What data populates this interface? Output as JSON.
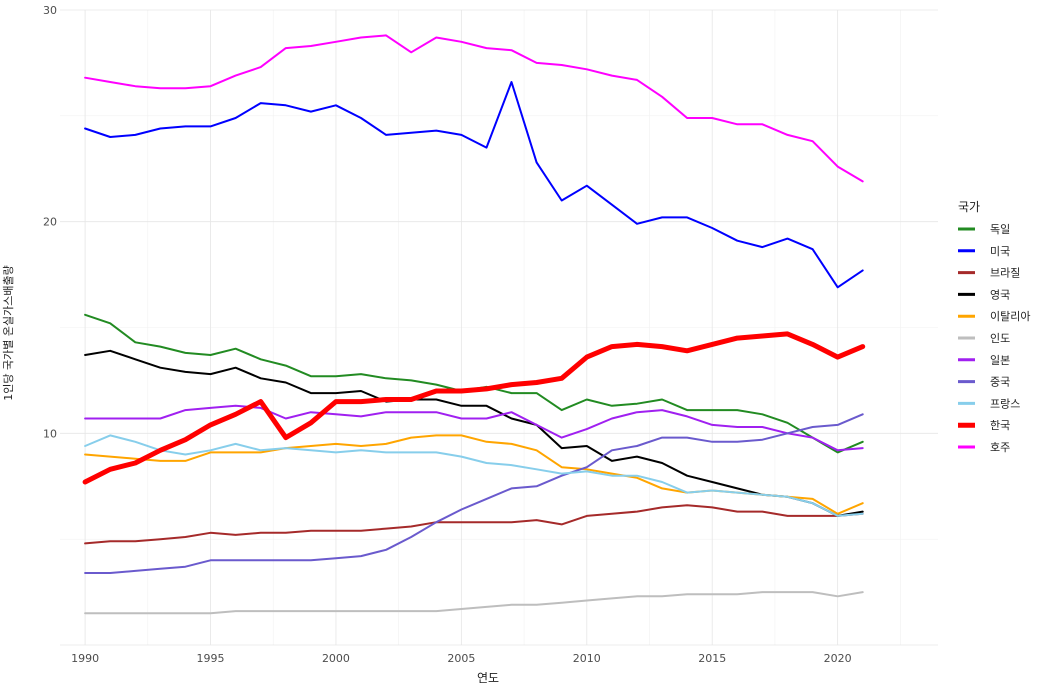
{
  "chart_data": {
    "type": "line",
    "title": "",
    "xlabel": "연도",
    "ylabel": "1인당 국가별 온실가스배출량",
    "xlim": [
      1989,
      2024
    ],
    "ylim": [
      0,
      30
    ],
    "x_ticks": [
      1990,
      1995,
      2000,
      2005,
      2010,
      2015,
      2020
    ],
    "y_ticks": [
      10,
      20,
      30
    ],
    "grid": true,
    "legend_title": "국가",
    "legend_position": "right",
    "x": [
      1990,
      1991,
      1992,
      1993,
      1994,
      1995,
      1996,
      1997,
      1998,
      1999,
      2000,
      2001,
      2002,
      2003,
      2004,
      2005,
      2006,
      2007,
      2008,
      2009,
      2010,
      2011,
      2012,
      2013,
      2014,
      2015,
      2016,
      2017,
      2018,
      2019,
      2020,
      2021
    ],
    "series": [
      {
        "name": "독일",
        "color": "#228B22",
        "width": 2,
        "values": [
          15.6,
          15.2,
          14.3,
          14.1,
          13.8,
          13.7,
          14.0,
          13.5,
          13.2,
          12.7,
          12.7,
          12.8,
          12.6,
          12.5,
          12.3,
          12.0,
          12.2,
          11.9,
          11.9,
          11.1,
          11.6,
          11.3,
          11.4,
          11.6,
          11.1,
          11.1,
          11.1,
          10.9,
          10.5,
          9.8,
          9.1,
          9.6
        ]
      },
      {
        "name": "미국",
        "color": "#0000FF",
        "width": 2,
        "values": [
          24.4,
          24.0,
          24.1,
          24.4,
          24.5,
          24.5,
          24.9,
          25.6,
          25.5,
          25.2,
          25.5,
          24.9,
          24.1,
          24.2,
          24.3,
          24.1,
          23.5,
          26.6,
          22.8,
          21.0,
          21.7,
          20.8,
          19.9,
          20.2,
          20.2,
          19.7,
          19.1,
          18.8,
          19.2,
          18.7,
          16.9,
          17.7
        ]
      },
      {
        "name": "브라질",
        "color": "#A52A2A",
        "width": 2,
        "values": [
          4.8,
          4.9,
          4.9,
          5.0,
          5.1,
          5.3,
          5.2,
          5.3,
          5.3,
          5.4,
          5.4,
          5.4,
          5.5,
          5.6,
          5.8,
          5.8,
          5.8,
          5.8,
          5.9,
          5.7,
          6.1,
          6.2,
          6.3,
          6.5,
          6.6,
          6.5,
          6.3,
          6.3,
          6.1,
          6.1,
          6.1,
          6.2
        ]
      },
      {
        "name": "영국",
        "color": "#000000",
        "width": 2,
        "values": [
          13.7,
          13.9,
          13.5,
          13.1,
          12.9,
          12.8,
          13.1,
          12.6,
          12.4,
          11.9,
          11.9,
          12.0,
          11.5,
          11.6,
          11.6,
          11.3,
          11.3,
          10.7,
          10.4,
          9.3,
          9.4,
          8.7,
          8.9,
          8.6,
          8.0,
          7.7,
          7.4,
          7.1,
          7.0,
          6.7,
          6.1,
          6.3
        ]
      },
      {
        "name": "이탈리아",
        "color": "#FFA500",
        "width": 2,
        "values": [
          9.0,
          8.9,
          8.8,
          8.7,
          8.7,
          9.1,
          9.1,
          9.1,
          9.3,
          9.4,
          9.5,
          9.4,
          9.5,
          9.8,
          9.9,
          9.9,
          9.6,
          9.5,
          9.2,
          8.4,
          8.3,
          8.1,
          7.9,
          7.4,
          7.2,
          7.3,
          7.2,
          7.1,
          7.0,
          6.9,
          6.2,
          6.7
        ]
      },
      {
        "name": "인도",
        "color": "#BEBEBE",
        "width": 2,
        "values": [
          1.5,
          1.5,
          1.5,
          1.5,
          1.5,
          1.5,
          1.6,
          1.6,
          1.6,
          1.6,
          1.6,
          1.6,
          1.6,
          1.6,
          1.6,
          1.7,
          1.8,
          1.9,
          1.9,
          2.0,
          2.1,
          2.2,
          2.3,
          2.3,
          2.4,
          2.4,
          2.4,
          2.5,
          2.5,
          2.5,
          2.3,
          2.5
        ]
      },
      {
        "name": "일본",
        "color": "#A020F0",
        "width": 2,
        "values": [
          10.7,
          10.7,
          10.7,
          10.7,
          11.1,
          11.2,
          11.3,
          11.2,
          10.7,
          11.0,
          10.9,
          10.8,
          11.0,
          11.0,
          11.0,
          10.7,
          10.7,
          11.0,
          10.4,
          9.8,
          10.2,
          10.7,
          11.0,
          11.1,
          10.8,
          10.4,
          10.3,
          10.3,
          10.0,
          9.8,
          9.2,
          9.3
        ]
      },
      {
        "name": "중국",
        "color": "#6A5ACD",
        "width": 2,
        "values": [
          3.4,
          3.4,
          3.5,
          3.6,
          3.7,
          4.0,
          4.0,
          4.0,
          4.0,
          4.0,
          4.1,
          4.2,
          4.5,
          5.1,
          5.8,
          6.4,
          6.9,
          7.4,
          7.5,
          8.0,
          8.4,
          9.2,
          9.4,
          9.8,
          9.8,
          9.6,
          9.6,
          9.7,
          10.0,
          10.3,
          10.4,
          10.9
        ]
      },
      {
        "name": "프랑스",
        "color": "#87CEEB",
        "width": 2,
        "values": [
          9.4,
          9.9,
          9.6,
          9.2,
          9.0,
          9.2,
          9.5,
          9.2,
          9.3,
          9.2,
          9.1,
          9.2,
          9.1,
          9.1,
          9.1,
          8.9,
          8.6,
          8.5,
          8.3,
          8.1,
          8.2,
          8.0,
          8.0,
          7.7,
          7.2,
          7.3,
          7.2,
          7.1,
          7.0,
          6.7,
          6.1,
          6.2
        ]
      },
      {
        "name": "한국",
        "color": "#FF0000",
        "width": 5,
        "values": [
          7.7,
          8.3,
          8.6,
          9.2,
          9.7,
          10.4,
          10.9,
          11.5,
          9.8,
          10.5,
          11.5,
          11.5,
          11.6,
          11.6,
          12.0,
          12.0,
          12.1,
          12.3,
          12.4,
          12.6,
          13.6,
          14.1,
          14.2,
          14.1,
          13.9,
          14.2,
          14.5,
          14.6,
          14.7,
          14.2,
          13.6,
          14.1
        ]
      },
      {
        "name": "호주",
        "color": "#FF00FF",
        "width": 2,
        "values": [
          26.8,
          26.6,
          26.4,
          26.3,
          26.3,
          26.4,
          26.9,
          27.3,
          28.2,
          28.3,
          28.5,
          28.7,
          28.8,
          28.0,
          28.7,
          28.5,
          28.2,
          28.1,
          27.5,
          27.4,
          27.2,
          26.9,
          26.7,
          25.9,
          24.9,
          24.9,
          24.6,
          24.6,
          24.1,
          23.8,
          22.6,
          21.9
        ]
      }
    ]
  }
}
